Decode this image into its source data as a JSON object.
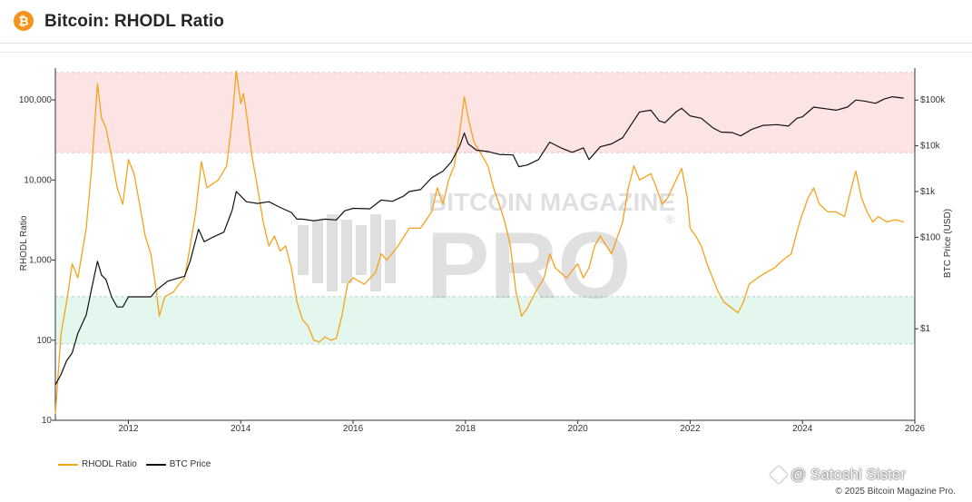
{
  "header": {
    "logo_symbol": "₿",
    "logo_icon": "bitcoin-icon",
    "title": "Bitcoin: RHODL Ratio"
  },
  "watermark": {
    "line1": "BITCOIN MAGAZINE",
    "line2": "PRO",
    "mark": "®"
  },
  "footer": {
    "handle": "@ Satoshi Sister",
    "handle_icon": "diamond-icon",
    "credit": "© 2025 Bitcoin Magazine Pro."
  },
  "colors": {
    "rhodl": "#f7a21b",
    "btc": "#111111",
    "red_band": "#fde4e4",
    "green_band": "#e4f7ee",
    "logo": "#f7931a"
  },
  "chart_data": {
    "type": "line",
    "title": "Bitcoin: RHODL Ratio",
    "x_ticks": [
      "2012",
      "2014",
      "2016",
      "2018",
      "2020",
      "2022",
      "2024",
      "2026"
    ],
    "xlim": [
      2010.7,
      2026.0
    ],
    "left_axis": {
      "label": "RHODL Ratio",
      "scale": "log",
      "range": [
        10,
        250000
      ],
      "ticks": [
        {
          "value": 10,
          "label": "10"
        },
        {
          "value": 100,
          "label": "100"
        },
        {
          "value": 1000,
          "label": "1,000"
        },
        {
          "value": 10000,
          "label": "10,000"
        },
        {
          "value": 100000,
          "label": "100,000"
        }
      ]
    },
    "right_axis": {
      "label": "BTC Price (USD)",
      "scale": "log",
      "range": [
        0.01,
        500000
      ],
      "ticks": [
        {
          "value": 1,
          "label": "$1"
        },
        {
          "value": 100,
          "label": "$100"
        },
        {
          "value": 1000,
          "label": "$1k"
        },
        {
          "value": 10000,
          "label": "$10k"
        },
        {
          "value": 100000,
          "label": "$100k"
        }
      ]
    },
    "bands": [
      {
        "zone": "overvalued",
        "axis": "left",
        "from": 22000,
        "to": 220000
      },
      {
        "zone": "undervalued",
        "axis": "left",
        "from": 90,
        "to": 350
      }
    ],
    "legend": {
      "placement": "bottom-left"
    },
    "series": [
      {
        "name": "RHODL Ratio",
        "axis": "left",
        "points": [
          [
            2010.7,
            12
          ],
          [
            2010.8,
            120
          ],
          [
            2010.9,
            300
          ],
          [
            2011.0,
            900
          ],
          [
            2011.1,
            600
          ],
          [
            2011.25,
            2500
          ],
          [
            2011.35,
            15000
          ],
          [
            2011.45,
            160000
          ],
          [
            2011.52,
            60000
          ],
          [
            2011.6,
            45000
          ],
          [
            2011.7,
            20000
          ],
          [
            2011.8,
            8000
          ],
          [
            2011.9,
            5000
          ],
          [
            2012.0,
            18000
          ],
          [
            2012.1,
            12000
          ],
          [
            2012.2,
            5000
          ],
          [
            2012.3,
            2000
          ],
          [
            2012.4,
            1200
          ],
          [
            2012.5,
            400
          ],
          [
            2012.55,
            200
          ],
          [
            2012.65,
            350
          ],
          [
            2012.8,
            400
          ],
          [
            2012.9,
            500
          ],
          [
            2013.0,
            600
          ],
          [
            2013.1,
            1500
          ],
          [
            2013.2,
            4000
          ],
          [
            2013.3,
            17000
          ],
          [
            2013.4,
            8000
          ],
          [
            2013.5,
            9000
          ],
          [
            2013.6,
            10000
          ],
          [
            2013.75,
            15000
          ],
          [
            2013.85,
            60000
          ],
          [
            2013.92,
            230000
          ],
          [
            2014.0,
            90000
          ],
          [
            2014.05,
            120000
          ],
          [
            2014.1,
            70000
          ],
          [
            2014.2,
            20000
          ],
          [
            2014.3,
            8000
          ],
          [
            2014.4,
            3000
          ],
          [
            2014.5,
            1500
          ],
          [
            2014.6,
            2000
          ],
          [
            2014.7,
            1300
          ],
          [
            2014.8,
            1500
          ],
          [
            2014.9,
            800
          ],
          [
            2015.0,
            300
          ],
          [
            2015.1,
            180
          ],
          [
            2015.2,
            150
          ],
          [
            2015.3,
            100
          ],
          [
            2015.4,
            95
          ],
          [
            2015.5,
            110
          ],
          [
            2015.6,
            100
          ],
          [
            2015.7,
            105
          ],
          [
            2015.8,
            200
          ],
          [
            2015.9,
            500
          ],
          [
            2016.0,
            600
          ],
          [
            2016.2,
            500
          ],
          [
            2016.4,
            700
          ],
          [
            2016.5,
            1200
          ],
          [
            2016.6,
            1000
          ],
          [
            2016.8,
            1500
          ],
          [
            2017.0,
            2500
          ],
          [
            2017.2,
            2500
          ],
          [
            2017.4,
            4000
          ],
          [
            2017.5,
            8000
          ],
          [
            2017.6,
            5000
          ],
          [
            2017.7,
            10000
          ],
          [
            2017.8,
            15000
          ],
          [
            2017.9,
            40000
          ],
          [
            2017.98,
            110000
          ],
          [
            2018.05,
            60000
          ],
          [
            2018.15,
            30000
          ],
          [
            2018.3,
            20000
          ],
          [
            2018.4,
            15000
          ],
          [
            2018.5,
            8000
          ],
          [
            2018.6,
            5000
          ],
          [
            2018.7,
            3000
          ],
          [
            2018.8,
            1500
          ],
          [
            2018.9,
            400
          ],
          [
            2019.0,
            200
          ],
          [
            2019.1,
            250
          ],
          [
            2019.25,
            400
          ],
          [
            2019.4,
            600
          ],
          [
            2019.5,
            1200
          ],
          [
            2019.6,
            800
          ],
          [
            2019.8,
            600
          ],
          [
            2020.0,
            900
          ],
          [
            2020.1,
            600
          ],
          [
            2020.2,
            800
          ],
          [
            2020.3,
            1500
          ],
          [
            2020.4,
            2000
          ],
          [
            2020.6,
            1200
          ],
          [
            2020.8,
            3000
          ],
          [
            2020.9,
            8000
          ],
          [
            2021.0,
            15000
          ],
          [
            2021.1,
            10000
          ],
          [
            2021.3,
            12000
          ],
          [
            2021.4,
            8000
          ],
          [
            2021.5,
            5000
          ],
          [
            2021.6,
            6000
          ],
          [
            2021.75,
            10000
          ],
          [
            2021.85,
            14000
          ],
          [
            2021.95,
            6000
          ],
          [
            2022.0,
            2500
          ],
          [
            2022.1,
            2000
          ],
          [
            2022.2,
            1500
          ],
          [
            2022.3,
            900
          ],
          [
            2022.4,
            600
          ],
          [
            2022.5,
            400
          ],
          [
            2022.6,
            300
          ],
          [
            2022.75,
            250
          ],
          [
            2022.85,
            220
          ],
          [
            2022.95,
            300
          ],
          [
            2023.05,
            500
          ],
          [
            2023.2,
            600
          ],
          [
            2023.35,
            700
          ],
          [
            2023.5,
            800
          ],
          [
            2023.65,
            1000
          ],
          [
            2023.8,
            1200
          ],
          [
            2023.95,
            3000
          ],
          [
            2024.1,
            6000
          ],
          [
            2024.2,
            8000
          ],
          [
            2024.3,
            5000
          ],
          [
            2024.45,
            4000
          ],
          [
            2024.6,
            4000
          ],
          [
            2024.75,
            3500
          ],
          [
            2024.85,
            7000
          ],
          [
            2024.95,
            13000
          ],
          [
            2025.05,
            6000
          ],
          [
            2025.15,
            4000
          ],
          [
            2025.25,
            3000
          ],
          [
            2025.35,
            3500
          ],
          [
            2025.5,
            3000
          ],
          [
            2025.65,
            3200
          ],
          [
            2025.8,
            3000
          ]
        ]
      },
      {
        "name": "BTC Price",
        "axis": "right",
        "points": [
          [
            2010.7,
            0.06
          ],
          [
            2010.8,
            0.1
          ],
          [
            2010.9,
            0.2
          ],
          [
            2011.0,
            0.3
          ],
          [
            2011.1,
            0.8
          ],
          [
            2011.25,
            2
          ],
          [
            2011.35,
            8
          ],
          [
            2011.45,
            30
          ],
          [
            2011.52,
            15
          ],
          [
            2011.6,
            12
          ],
          [
            2011.7,
            5
          ],
          [
            2011.8,
            3
          ],
          [
            2011.9,
            3
          ],
          [
            2012.0,
            5
          ],
          [
            2012.2,
            5
          ],
          [
            2012.4,
            5
          ],
          [
            2012.5,
            7
          ],
          [
            2012.7,
            11
          ],
          [
            2012.9,
            13
          ],
          [
            2013.0,
            14
          ],
          [
            2013.1,
            30
          ],
          [
            2013.25,
            150
          ],
          [
            2013.35,
            80
          ],
          [
            2013.5,
            100
          ],
          [
            2013.7,
            130
          ],
          [
            2013.85,
            400
          ],
          [
            2013.92,
            1000
          ],
          [
            2014.0,
            800
          ],
          [
            2014.1,
            600
          ],
          [
            2014.3,
            550
          ],
          [
            2014.5,
            600
          ],
          [
            2014.7,
            450
          ],
          [
            2014.9,
            350
          ],
          [
            2015.0,
            250
          ],
          [
            2015.1,
            250
          ],
          [
            2015.3,
            230
          ],
          [
            2015.5,
            250
          ],
          [
            2015.7,
            240
          ],
          [
            2015.85,
            380
          ],
          [
            2016.0,
            430
          ],
          [
            2016.3,
            420
          ],
          [
            2016.5,
            650
          ],
          [
            2016.7,
            610
          ],
          [
            2016.9,
            800
          ],
          [
            2017.0,
            1000
          ],
          [
            2017.2,
            1100
          ],
          [
            2017.4,
            2000
          ],
          [
            2017.6,
            2800
          ],
          [
            2017.75,
            4500
          ],
          [
            2017.9,
            10000
          ],
          [
            2017.98,
            19000
          ],
          [
            2018.05,
            11000
          ],
          [
            2018.2,
            8000
          ],
          [
            2018.4,
            7500
          ],
          [
            2018.6,
            6500
          ],
          [
            2018.85,
            6300
          ],
          [
            2018.95,
            3500
          ],
          [
            2019.1,
            3800
          ],
          [
            2019.3,
            5000
          ],
          [
            2019.5,
            12000
          ],
          [
            2019.7,
            9000
          ],
          [
            2019.9,
            7200
          ],
          [
            2020.1,
            9000
          ],
          [
            2020.2,
            5000
          ],
          [
            2020.4,
            9500
          ],
          [
            2020.6,
            11000
          ],
          [
            2020.8,
            15000
          ],
          [
            2020.95,
            29000
          ],
          [
            2021.1,
            55000
          ],
          [
            2021.3,
            60000
          ],
          [
            2021.45,
            35000
          ],
          [
            2021.55,
            32000
          ],
          [
            2021.75,
            55000
          ],
          [
            2021.85,
            66000
          ],
          [
            2022.0,
            45000
          ],
          [
            2022.2,
            40000
          ],
          [
            2022.4,
            25000
          ],
          [
            2022.55,
            20000
          ],
          [
            2022.75,
            19500
          ],
          [
            2022.9,
            16500
          ],
          [
            2023.1,
            23000
          ],
          [
            2023.3,
            28000
          ],
          [
            2023.55,
            29000
          ],
          [
            2023.75,
            27000
          ],
          [
            2023.9,
            40000
          ],
          [
            2024.0,
            43000
          ],
          [
            2024.2,
            70000
          ],
          [
            2024.4,
            65000
          ],
          [
            2024.6,
            60000
          ],
          [
            2024.8,
            70000
          ],
          [
            2024.95,
            100000
          ],
          [
            2025.1,
            95000
          ],
          [
            2025.3,
            85000
          ],
          [
            2025.45,
            105000
          ],
          [
            2025.6,
            118000
          ],
          [
            2025.8,
            110000
          ]
        ]
      }
    ]
  }
}
